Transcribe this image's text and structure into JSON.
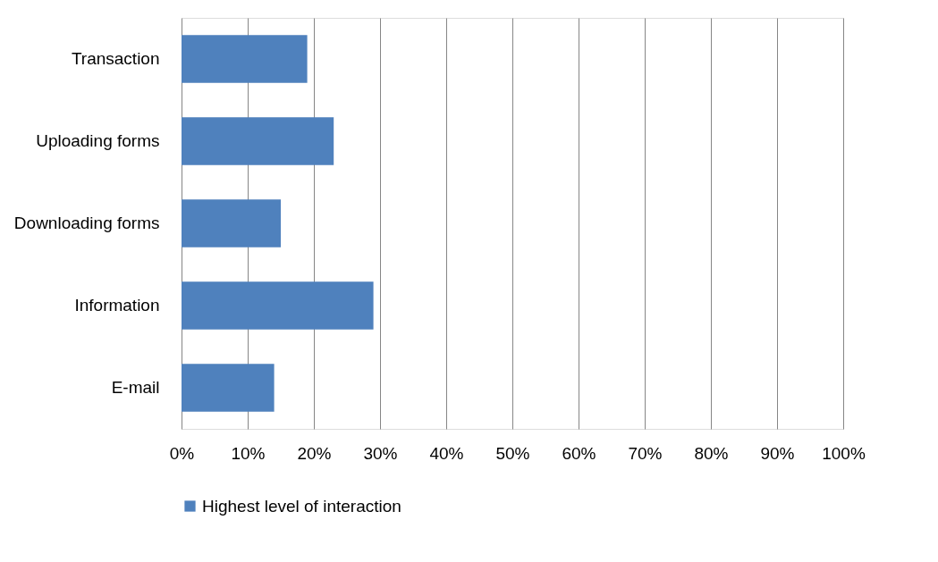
{
  "chart_data": {
    "type": "bar",
    "orientation": "horizontal",
    "categories": [
      "Transaction",
      "Uploading forms",
      "Downloading forms",
      "Information",
      "E-mail"
    ],
    "series": [
      {
        "name": "Highest level of interaction",
        "color": "#4f81bd",
        "values": [
          19,
          23,
          15,
          29,
          14
        ]
      }
    ],
    "xlim": [
      0,
      100
    ],
    "xticks": [
      {
        "value": 0,
        "label": "0%"
      },
      {
        "value": 10,
        "label": "10%"
      },
      {
        "value": 20,
        "label": "20%"
      },
      {
        "value": 30,
        "label": "30%"
      },
      {
        "value": 40,
        "label": "40%"
      },
      {
        "value": 50,
        "label": "50%"
      },
      {
        "value": 60,
        "label": "60%"
      },
      {
        "value": 70,
        "label": "70%"
      },
      {
        "value": 80,
        "label": "80%"
      },
      {
        "value": 90,
        "label": "90%"
      },
      {
        "value": 100,
        "label": "100%"
      }
    ],
    "grid": "x",
    "legend": "bottom"
  }
}
